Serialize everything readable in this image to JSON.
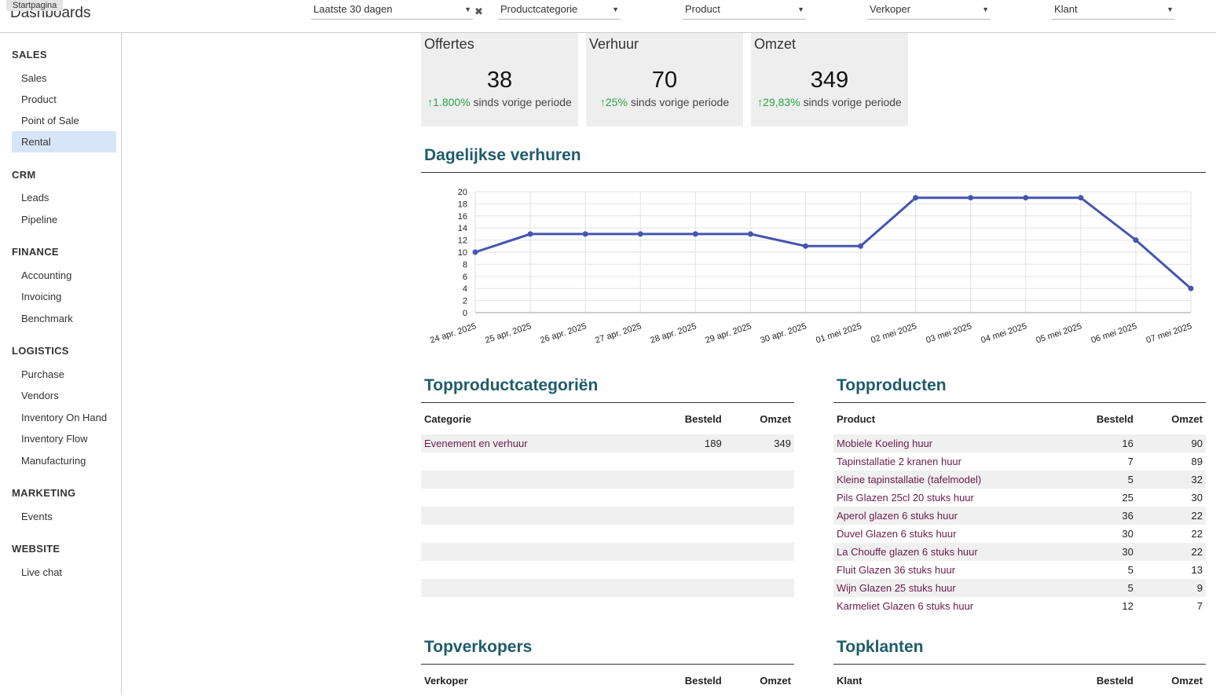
{
  "tooltip": "Startpagina",
  "header": {
    "title": "Dashboards",
    "filters": [
      {
        "value": "Laatste 30 dagen"
      },
      {
        "value": "Productcategorie"
      },
      {
        "value": "Product"
      },
      {
        "value": "Verkoper"
      },
      {
        "value": "Klant"
      }
    ]
  },
  "sidebar": {
    "sections": [
      {
        "title": "SALES",
        "items": [
          "Sales",
          "Product",
          "Point of Sale",
          "Rental"
        ]
      },
      {
        "title": "CRM",
        "items": [
          "Leads",
          "Pipeline"
        ]
      },
      {
        "title": "FINANCE",
        "items": [
          "Accounting",
          "Invoicing",
          "Benchmark"
        ]
      },
      {
        "title": "LOGISTICS",
        "items": [
          "Purchase",
          "Vendors",
          "Inventory On Hand",
          "Inventory Flow",
          "Manufacturing"
        ]
      },
      {
        "title": "MARKETING",
        "items": [
          "Events"
        ]
      },
      {
        "title": "WEBSITE",
        "items": [
          "Live chat"
        ]
      }
    ],
    "active": "Rental"
  },
  "kpis": [
    {
      "title": "Offertes",
      "value": "38",
      "delta": "1.800%",
      "suffix": "sinds vorige periode"
    },
    {
      "title": "Verhuur",
      "value": "70",
      "delta": "25%",
      "suffix": "sinds vorige periode"
    },
    {
      "title": "Omzet",
      "value": "349",
      "delta": "29,83%",
      "suffix": "sinds vorige periode"
    }
  ],
  "chart_title": "Dagelijkse verhuren",
  "chart_data": {
    "type": "line",
    "title": "Dagelijkse verhuren",
    "categories": [
      "24 apr. 2025",
      "25 apr. 2025",
      "26 apr. 2025",
      "27 apr. 2025",
      "28 apr. 2025",
      "29 apr. 2025",
      "30 apr. 2025",
      "01 mei 2025",
      "02 mei 2025",
      "03 mei 2025",
      "04 mei 2025",
      "05 mei 2025",
      "06 mei 2025",
      "07 mei 2025"
    ],
    "values": [
      10,
      13,
      13,
      13,
      13,
      13,
      11,
      11,
      19,
      19,
      19,
      19,
      12,
      4
    ],
    "ylim": [
      0,
      20
    ],
    "yticks": [
      0,
      2,
      4,
      6,
      8,
      10,
      12,
      14,
      16,
      18,
      20
    ],
    "color": "#4456b0",
    "grid": true
  },
  "top_categories": {
    "title": "Topproductcategoriën",
    "headers": [
      "Categorie",
      "Besteld",
      "Omzet"
    ],
    "rows": [
      [
        "Evenement en verhuur",
        "189",
        "349"
      ]
    ]
  },
  "top_products": {
    "title": "Topproducten",
    "headers": [
      "Product",
      "Besteld",
      "Omzet"
    ],
    "rows": [
      [
        "Mobiele Koeling huur",
        "16",
        "90"
      ],
      [
        "Tapinstallatie 2 kranen huur",
        "7",
        "89"
      ],
      [
        "Kleine tapinstallatie (tafelmodel)",
        "5",
        "32"
      ],
      [
        "Pils Glazen 25cl 20 stuks huur",
        "25",
        "30"
      ],
      [
        "Aperol glazen 6 stuks huur",
        "36",
        "22"
      ],
      [
        "Duvel Glazen 6 stuks huur",
        "30",
        "22"
      ],
      [
        "La Chouffe glazen 6 stuks huur",
        "30",
        "22"
      ],
      [
        "Fluit Glazen 36 stuks huur",
        "5",
        "13"
      ],
      [
        "Wijn Glazen 25 stuks huur",
        "5",
        "9"
      ],
      [
        "Karmeliet Glazen 6 stuks huur",
        "12",
        "7"
      ]
    ]
  },
  "top_sellers": {
    "title": "Topverkopers",
    "headers": [
      "Verkoper",
      "Besteld",
      "Omzet"
    ]
  },
  "top_customers": {
    "title": "Topklanten",
    "headers": [
      "Klant",
      "Besteld",
      "Omzet"
    ]
  }
}
